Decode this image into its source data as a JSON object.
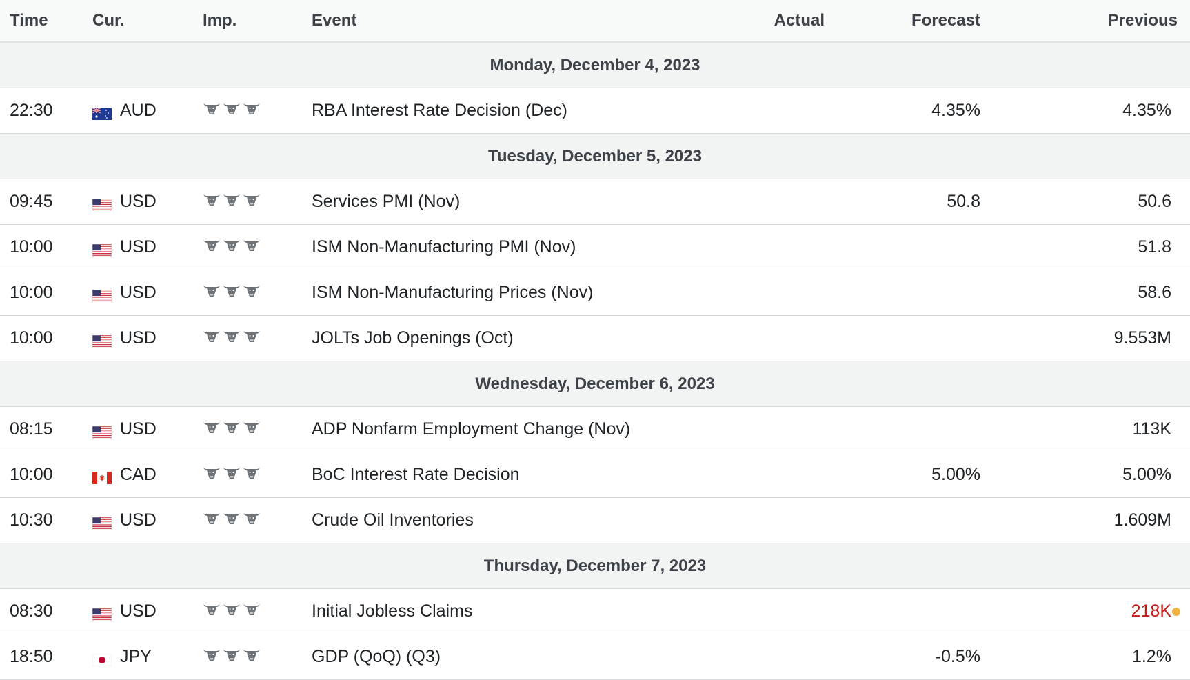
{
  "headers": {
    "time": "Time",
    "currency": "Cur.",
    "importance": "Imp.",
    "event": "Event",
    "actual": "Actual",
    "forecast": "Forecast",
    "previous": "Previous"
  },
  "colors": {
    "bull_icon": "#6f7478",
    "previous_negative": "#c21b17",
    "revision_dot": "#f0b23e",
    "day_row_bg": "#f2f3f3"
  },
  "days": [
    {
      "label": "Monday, December 4, 2023",
      "events": [
        {
          "time": "22:30",
          "flag": "australia-flag-icon",
          "currency": "AUD",
          "importance": 3,
          "event": "RBA Interest Rate Decision (Dec)",
          "actual": "",
          "forecast": "4.35%",
          "previous": "4.35%"
        }
      ]
    },
    {
      "label": "Tuesday, December 5, 2023",
      "events": [
        {
          "time": "09:45",
          "flag": "us-flag-icon",
          "currency": "USD",
          "importance": 3,
          "event": "Services PMI (Nov)",
          "actual": "",
          "forecast": "50.8",
          "previous": "50.6"
        },
        {
          "time": "10:00",
          "flag": "us-flag-icon",
          "currency": "USD",
          "importance": 3,
          "event": "ISM Non-Manufacturing PMI (Nov)",
          "actual": "",
          "forecast": "",
          "previous": "51.8"
        },
        {
          "time": "10:00",
          "flag": "us-flag-icon",
          "currency": "USD",
          "importance": 3,
          "event": "ISM Non-Manufacturing Prices (Nov)",
          "actual": "",
          "forecast": "",
          "previous": "58.6"
        },
        {
          "time": "10:00",
          "flag": "us-flag-icon",
          "currency": "USD",
          "importance": 3,
          "event": "JOLTs Job Openings (Oct)",
          "actual": "",
          "forecast": "",
          "previous": "9.553M"
        }
      ]
    },
    {
      "label": "Wednesday, December 6, 2023",
      "events": [
        {
          "time": "08:15",
          "flag": "us-flag-icon",
          "currency": "USD",
          "importance": 3,
          "event": "ADP Nonfarm Employment Change (Nov)",
          "actual": "",
          "forecast": "",
          "previous": "113K"
        },
        {
          "time": "10:00",
          "flag": "canada-flag-icon",
          "currency": "CAD",
          "importance": 3,
          "event": "BoC Interest Rate Decision",
          "actual": "",
          "forecast": "5.00%",
          "previous": "5.00%"
        },
        {
          "time": "10:30",
          "flag": "us-flag-icon",
          "currency": "USD",
          "importance": 3,
          "event": "Crude Oil Inventories",
          "actual": "",
          "forecast": "",
          "previous": "1.609M"
        }
      ]
    },
    {
      "label": "Thursday, December 7, 2023",
      "events": [
        {
          "time": "08:30",
          "flag": "us-flag-icon",
          "currency": "USD",
          "importance": 3,
          "event": "Initial Jobless Claims",
          "actual": "",
          "forecast": "",
          "previous": "218K",
          "previous_status": "revised-down",
          "revision_dot": true
        },
        {
          "time": "18:50",
          "flag": "japan-flag-icon",
          "currency": "JPY",
          "importance": 3,
          "event": "GDP (QoQ) (Q3)",
          "actual": "",
          "forecast": "-0.5%",
          "previous": "1.2%"
        }
      ]
    }
  ]
}
